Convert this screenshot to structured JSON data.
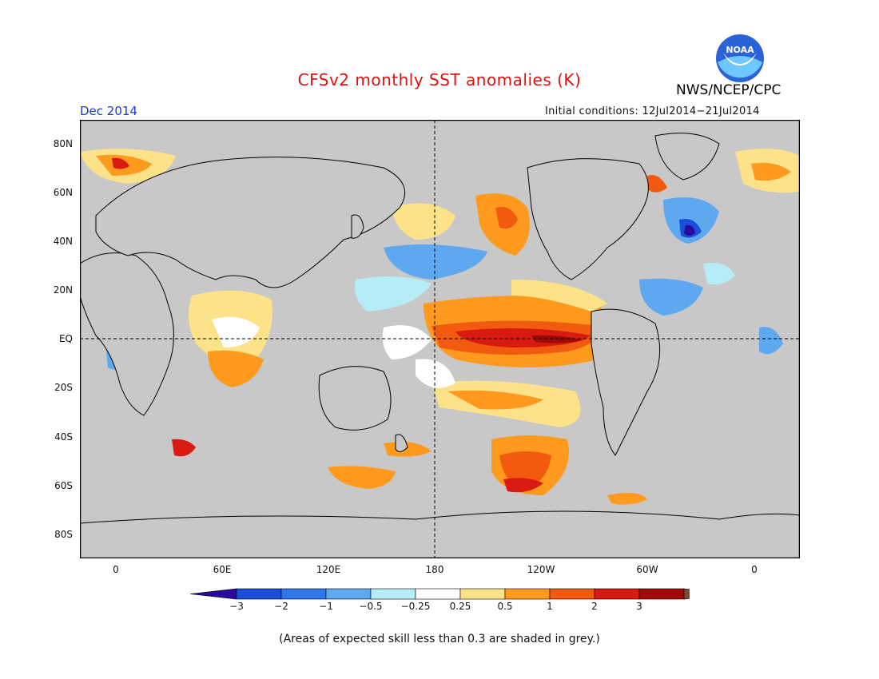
{
  "header": {
    "title": "CFSv2 monthly SST anomalies (K)",
    "org": "NWS/NCEP/CPC",
    "logo_text": "NOAA",
    "month": "Dec 2014",
    "initial_conditions": "Initial conditions: 12Jul2014−21Jul2014"
  },
  "map": {
    "lat_labels": [
      "80N",
      "60N",
      "40N",
      "20N",
      "EQ",
      "20S",
      "40S",
      "60S",
      "80S"
    ],
    "lon_labels": [
      "0",
      "60E",
      "120E",
      "180",
      "120W",
      "60W",
      "0"
    ],
    "land_color": "#c8c8c8",
    "ocean_grey_color": "#c8c8c8"
  },
  "colorbar": {
    "labels": [
      "−3",
      "−2",
      "−1",
      "−0.5",
      "−0.25",
      "0.25",
      "0.5",
      "1",
      "2",
      "3"
    ],
    "colors": [
      "#2a0a9c",
      "#1a4fd6",
      "#2f78e8",
      "#5ea8f0",
      "#b6ecf6",
      "#ffffff",
      "#fde28a",
      "#ff9a1e",
      "#f25a10",
      "#d81a10",
      "#a00a0a",
      "#7b4a3a"
    ]
  },
  "footnote": "(Areas of expected skill less than 0.3 are shaded in grey.)"
}
